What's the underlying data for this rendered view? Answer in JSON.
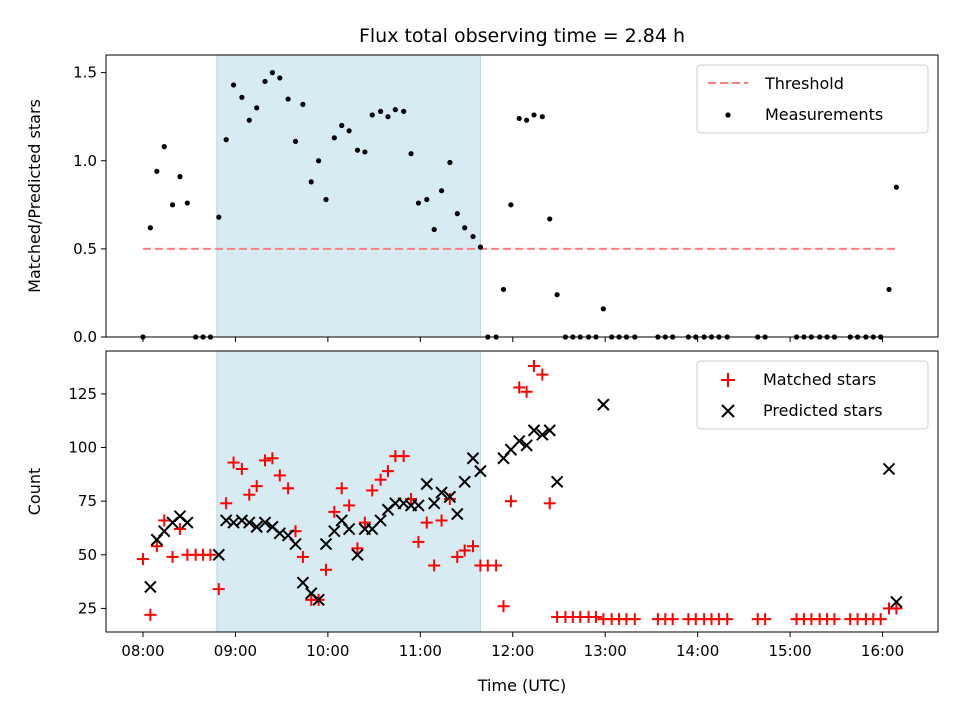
{
  "chart_data": {
    "title": "Flux total observing time = 2.84 h",
    "xlabel": "Time (UTC)",
    "x_ticks": [
      "08:00",
      "09:00",
      "10:00",
      "11:00",
      "12:00",
      "13:00",
      "14:00",
      "15:00",
      "16:00"
    ],
    "x_range_hours": [
      7.6,
      16.6
    ],
    "highlight_span": {
      "start": 8.8,
      "end": 11.65,
      "color": "#add8e6"
    },
    "panels": [
      {
        "type": "scatter",
        "ylabel": "Matched/Predicted stars",
        "ylim": [
          0,
          1.6
        ],
        "yticks": [
          0.0,
          0.5,
          1.0,
          1.5
        ],
        "ytick_labels": [
          "0.0",
          "0.5",
          "1.0",
          "1.5"
        ],
        "legend_position": "top-right",
        "threshold": {
          "name": "Threshold",
          "value": 0.5,
          "x_start": 8.0,
          "x_end": 16.15,
          "color": "#ff7f7f"
        },
        "series": [
          {
            "name": "Measurements",
            "color": "#000000",
            "marker": "dot",
            "points": [
              [
                8.0,
                0.0
              ],
              [
                8.08,
                0.62
              ],
              [
                8.15,
                0.94
              ],
              [
                8.23,
                1.08
              ],
              [
                8.32,
                0.75
              ],
              [
                8.4,
                0.91
              ],
              [
                8.48,
                0.76
              ],
              [
                8.57,
                0.0
              ],
              [
                8.65,
                0.0
              ],
              [
                8.73,
                0.0
              ],
              [
                8.82,
                0.68
              ],
              [
                8.9,
                1.12
              ],
              [
                8.98,
                1.43
              ],
              [
                9.07,
                1.36
              ],
              [
                9.15,
                1.23
              ],
              [
                9.23,
                1.3
              ],
              [
                9.32,
                1.45
              ],
              [
                9.4,
                1.5
              ],
              [
                9.48,
                1.47
              ],
              [
                9.57,
                1.35
              ],
              [
                9.65,
                1.11
              ],
              [
                9.73,
                1.32
              ],
              [
                9.82,
                0.88
              ],
              [
                9.9,
                1.0
              ],
              [
                9.98,
                0.78
              ],
              [
                10.07,
                1.13
              ],
              [
                10.15,
                1.2
              ],
              [
                10.23,
                1.17
              ],
              [
                10.32,
                1.06
              ],
              [
                10.4,
                1.05
              ],
              [
                10.48,
                1.26
              ],
              [
                10.57,
                1.28
              ],
              [
                10.65,
                1.25
              ],
              [
                10.73,
                1.29
              ],
              [
                10.82,
                1.28
              ],
              [
                10.9,
                1.04
              ],
              [
                10.98,
                0.76
              ],
              [
                11.07,
                0.78
              ],
              [
                11.15,
                0.61
              ],
              [
                11.23,
                0.83
              ],
              [
                11.32,
                0.99
              ],
              [
                11.4,
                0.7
              ],
              [
                11.48,
                0.62
              ],
              [
                11.57,
                0.57
              ],
              [
                11.65,
                0.51
              ],
              [
                11.73,
                0.0
              ],
              [
                11.82,
                0.0
              ],
              [
                11.9,
                0.27
              ],
              [
                11.98,
                0.75
              ],
              [
                12.07,
                1.24
              ],
              [
                12.15,
                1.23
              ],
              [
                12.23,
                1.26
              ],
              [
                12.32,
                1.25
              ],
              [
                12.4,
                0.67
              ],
              [
                12.48,
                0.24
              ],
              [
                12.57,
                0.0
              ],
              [
                12.65,
                0.0
              ],
              [
                12.73,
                0.0
              ],
              [
                12.82,
                0.0
              ],
              [
                12.9,
                0.0
              ],
              [
                12.98,
                0.16
              ],
              [
                13.07,
                0.0
              ],
              [
                13.15,
                0.0
              ],
              [
                13.23,
                0.0
              ],
              [
                13.32,
                0.0
              ],
              [
                13.57,
                0.0
              ],
              [
                13.65,
                0.0
              ],
              [
                13.73,
                0.0
              ],
              [
                13.9,
                0.0
              ],
              [
                13.98,
                0.0
              ],
              [
                14.07,
                0.0
              ],
              [
                14.15,
                0.0
              ],
              [
                14.23,
                0.0
              ],
              [
                14.32,
                0.0
              ],
              [
                14.65,
                0.0
              ],
              [
                14.73,
                0.0
              ],
              [
                15.07,
                0.0
              ],
              [
                15.15,
                0.0
              ],
              [
                15.23,
                0.0
              ],
              [
                15.32,
                0.0
              ],
              [
                15.4,
                0.0
              ],
              [
                15.48,
                0.0
              ],
              [
                15.65,
                0.0
              ],
              [
                15.73,
                0.0
              ],
              [
                15.82,
                0.0
              ],
              [
                15.9,
                0.0
              ],
              [
                15.98,
                0.0
              ],
              [
                16.07,
                0.27
              ],
              [
                16.15,
                0.85
              ]
            ]
          }
        ]
      },
      {
        "type": "scatter",
        "ylabel": "Count",
        "ylim": [
          14,
          145
        ],
        "yticks": [
          25,
          50,
          75,
          100,
          125
        ],
        "ytick_labels": [
          "25",
          "50",
          "75",
          "100",
          "125"
        ],
        "legend_position": "top-right",
        "series": [
          {
            "name": "Matched stars",
            "color": "#ff0000",
            "marker": "plus",
            "points": [
              [
                8.0,
                48
              ],
              [
                8.08,
                22
              ],
              [
                8.15,
                54
              ],
              [
                8.23,
                66
              ],
              [
                8.32,
                49
              ],
              [
                8.4,
                62
              ],
              [
                8.48,
                50
              ],
              [
                8.57,
                50
              ],
              [
                8.65,
                50
              ],
              [
                8.73,
                50
              ],
              [
                8.82,
                34
              ],
              [
                8.9,
                74
              ],
              [
                8.98,
                93
              ],
              [
                9.07,
                90
              ],
              [
                9.15,
                78
              ],
              [
                9.23,
                82
              ],
              [
                9.32,
                94
              ],
              [
                9.4,
                95
              ],
              [
                9.48,
                87
              ],
              [
                9.57,
                81
              ],
              [
                9.65,
                61
              ],
              [
                9.73,
                49
              ],
              [
                9.82,
                29
              ],
              [
                9.9,
                29
              ],
              [
                9.98,
                43
              ],
              [
                10.07,
                70
              ],
              [
                10.15,
                81
              ],
              [
                10.23,
                73
              ],
              [
                10.32,
                53
              ],
              [
                10.4,
                65
              ],
              [
                10.48,
                80
              ],
              [
                10.57,
                85
              ],
              [
                10.65,
                89
              ],
              [
                10.73,
                96
              ],
              [
                10.82,
                96
              ],
              [
                10.9,
                76
              ],
              [
                10.98,
                56
              ],
              [
                11.07,
                65
              ],
              [
                11.15,
                45
              ],
              [
                11.23,
                66
              ],
              [
                11.32,
                76
              ],
              [
                11.4,
                49
              ],
              [
                11.48,
                52
              ],
              [
                11.57,
                54
              ],
              [
                11.65,
                45
              ],
              [
                11.73,
                45
              ],
              [
                11.82,
                45
              ],
              [
                11.9,
                26
              ],
              [
                11.98,
                75
              ],
              [
                12.07,
                128
              ],
              [
                12.15,
                126
              ],
              [
                12.23,
                138
              ],
              [
                12.32,
                134
              ],
              [
                12.4,
                74
              ],
              [
                12.48,
                21
              ],
              [
                12.57,
                21
              ],
              [
                12.65,
                21
              ],
              [
                12.73,
                21
              ],
              [
                12.82,
                21
              ],
              [
                12.9,
                21
              ],
              [
                12.98,
                20
              ],
              [
                13.07,
                20
              ],
              [
                13.15,
                20
              ],
              [
                13.23,
                20
              ],
              [
                13.32,
                20
              ],
              [
                13.57,
                20
              ],
              [
                13.65,
                20
              ],
              [
                13.73,
                20
              ],
              [
                13.9,
                20
              ],
              [
                13.98,
                20
              ],
              [
                14.07,
                20
              ],
              [
                14.15,
                20
              ],
              [
                14.23,
                20
              ],
              [
                14.32,
                20
              ],
              [
                14.65,
                20
              ],
              [
                14.73,
                20
              ],
              [
                15.07,
                20
              ],
              [
                15.15,
                20
              ],
              [
                15.23,
                20
              ],
              [
                15.32,
                20
              ],
              [
                15.4,
                20
              ],
              [
                15.48,
                20
              ],
              [
                15.65,
                20
              ],
              [
                15.73,
                20
              ],
              [
                15.82,
                20
              ],
              [
                15.9,
                20
              ],
              [
                15.98,
                20
              ],
              [
                16.07,
                25
              ],
              [
                16.15,
                25
              ]
            ]
          },
          {
            "name": "Predicted stars",
            "color": "#000000",
            "marker": "x",
            "points": [
              [
                8.08,
                35
              ],
              [
                8.15,
                57
              ],
              [
                8.23,
                61
              ],
              [
                8.32,
                65
              ],
              [
                8.4,
                68
              ],
              [
                8.48,
                65
              ],
              [
                8.82,
                50
              ],
              [
                8.9,
                66
              ],
              [
                8.98,
                65
              ],
              [
                9.07,
                66
              ],
              [
                9.15,
                65
              ],
              [
                9.23,
                63
              ],
              [
                9.32,
                65
              ],
              [
                9.4,
                63
              ],
              [
                9.48,
                60
              ],
              [
                9.57,
                59
              ],
              [
                9.65,
                55
              ],
              [
                9.73,
                37
              ],
              [
                9.82,
                32
              ],
              [
                9.9,
                29
              ],
              [
                9.98,
                55
              ],
              [
                10.07,
                61
              ],
              [
                10.15,
                66
              ],
              [
                10.23,
                62
              ],
              [
                10.32,
                50
              ],
              [
                10.4,
                62
              ],
              [
                10.48,
                62
              ],
              [
                10.57,
                66
              ],
              [
                10.65,
                71
              ],
              [
                10.73,
                74
              ],
              [
                10.82,
                74
              ],
              [
                10.9,
                73
              ],
              [
                10.98,
                73
              ],
              [
                11.07,
                83
              ],
              [
                11.15,
                74
              ],
              [
                11.23,
                79
              ],
              [
                11.32,
                77
              ],
              [
                11.4,
                69
              ],
              [
                11.48,
                84
              ],
              [
                11.57,
                95
              ],
              [
                11.65,
                89
              ],
              [
                11.9,
                95
              ],
              [
                11.98,
                99
              ],
              [
                12.07,
                103
              ],
              [
                12.15,
                101
              ],
              [
                12.23,
                108
              ],
              [
                12.32,
                106
              ],
              [
                12.4,
                108
              ],
              [
                12.48,
                84
              ],
              [
                12.98,
                120
              ],
              [
                16.07,
                90
              ],
              [
                16.15,
                28
              ]
            ]
          }
        ]
      }
    ]
  }
}
